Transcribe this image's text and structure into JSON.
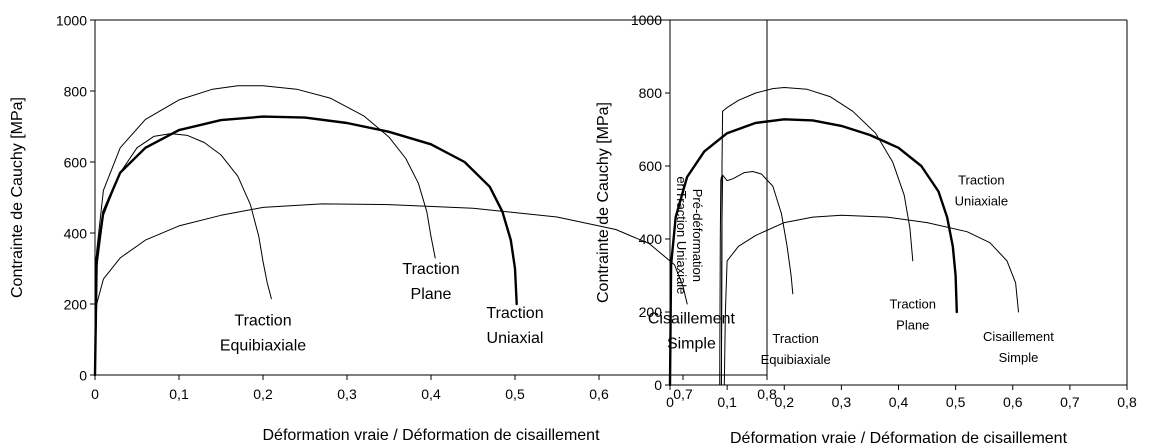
{
  "chart_data": [
    {
      "type": "line",
      "xlabel": "Déformation vraie / Déformation de cisaillement",
      "ylabel": "Contrainte de Cauchy [MPa]",
      "xlim": [
        0,
        0.8
      ],
      "ylim": [
        0,
        1000
      ],
      "x_ticks": [
        "0",
        "0,1",
        "0,2",
        "0,3",
        "0,4",
        "0,5",
        "0,6",
        "0,7",
        "0,8"
      ],
      "y_ticks": [
        "0",
        "200",
        "400",
        "600",
        "800",
        "1000"
      ],
      "grid": false,
      "series": [
        {
          "name": "Traction Equibiaxiale",
          "width": "thin",
          "points": [
            [
              0,
              0
            ],
            [
              0.002,
              300
            ],
            [
              0.01,
              450
            ],
            [
              0.03,
              570
            ],
            [
              0.05,
              640
            ],
            [
              0.07,
              672
            ],
            [
              0.09,
              680
            ],
            [
              0.11,
              675
            ],
            [
              0.13,
              655
            ],
            [
              0.15,
              620
            ],
            [
              0.17,
              560
            ],
            [
              0.185,
              480
            ],
            [
              0.195,
              390
            ],
            [
              0.2,
              320
            ],
            [
              0.205,
              260
            ],
            [
              0.21,
              215
            ]
          ]
        },
        {
          "name": "Traction Plane",
          "width": "thin",
          "points": [
            [
              0,
              0
            ],
            [
              0.002,
              350
            ],
            [
              0.01,
              520
            ],
            [
              0.03,
              640
            ],
            [
              0.06,
              720
            ],
            [
              0.1,
              775
            ],
            [
              0.14,
              805
            ],
            [
              0.17,
              815
            ],
            [
              0.2,
              815
            ],
            [
              0.24,
              805
            ],
            [
              0.28,
              780
            ],
            [
              0.32,
              730
            ],
            [
              0.35,
              670
            ],
            [
              0.37,
              610
            ],
            [
              0.385,
              540
            ],
            [
              0.395,
              460
            ],
            [
              0.4,
              390
            ],
            [
              0.405,
              330
            ]
          ]
        },
        {
          "name": "Traction Uniaxial",
          "width": "thick",
          "points": [
            [
              0,
              0
            ],
            [
              0.002,
              330
            ],
            [
              0.01,
              460
            ],
            [
              0.03,
              570
            ],
            [
              0.06,
              640
            ],
            [
              0.1,
              690
            ],
            [
              0.15,
              718
            ],
            [
              0.2,
              728
            ],
            [
              0.25,
              725
            ],
            [
              0.3,
              710
            ],
            [
              0.35,
              685
            ],
            [
              0.4,
              650
            ],
            [
              0.44,
              600
            ],
            [
              0.47,
              530
            ],
            [
              0.485,
              460
            ],
            [
              0.495,
              380
            ],
            [
              0.5,
              300
            ],
            [
              0.502,
              200
            ]
          ]
        },
        {
          "name": "Cisaillement Simple",
          "width": "thin",
          "points": [
            [
              0,
              0
            ],
            [
              0.002,
              200
            ],
            [
              0.01,
              270
            ],
            [
              0.03,
              330
            ],
            [
              0.06,
              380
            ],
            [
              0.1,
              420
            ],
            [
              0.15,
              450
            ],
            [
              0.2,
              472
            ],
            [
              0.27,
              482
            ],
            [
              0.35,
              480
            ],
            [
              0.45,
              470
            ],
            [
              0.55,
              445
            ],
            [
              0.62,
              410
            ],
            [
              0.66,
              370
            ],
            [
              0.69,
              310
            ],
            [
              0.7,
              250
            ],
            [
              0.705,
              200
            ]
          ]
        }
      ],
      "labels": [
        {
          "lines": [
            "Traction",
            "Equibiaxiale"
          ],
          "x": 0.2,
          "y": 140,
          "ls": 25
        },
        {
          "lines": [
            "Traction",
            "Plane"
          ],
          "x": 0.4,
          "y": 285,
          "ls": 25
        },
        {
          "lines": [
            "Traction",
            "Uniaxial"
          ],
          "x": 0.5,
          "y": 160,
          "ls": 25
        },
        {
          "lines": [
            "Cisaillement",
            "Simple"
          ],
          "x": 0.71,
          "y": 145,
          "ls": 25
        }
      ]
    },
    {
      "type": "line",
      "xlabel": "Déformation vraie / Déformation de cisaillement",
      "ylabel": "Contrainte de Cauchy [MPa]",
      "xlim": [
        0,
        0.8
      ],
      "ylim": [
        0,
        1000
      ],
      "x_ticks": [
        "0",
        "0,1",
        "0,2",
        "0,3",
        "0,4",
        "0,5",
        "0,6",
        "0,7",
        "0,8"
      ],
      "y_ticks": [
        "0",
        "200",
        "400",
        "600",
        "800",
        "1000"
      ],
      "grid": false,
      "series": [
        {
          "name": "Traction Uniaxiale",
          "width": "thick",
          "points": [
            [
              0,
              0
            ],
            [
              0.002,
              330
            ],
            [
              0.01,
              460
            ],
            [
              0.03,
              570
            ],
            [
              0.06,
              640
            ],
            [
              0.1,
              690
            ],
            [
              0.15,
              718
            ],
            [
              0.2,
              728
            ],
            [
              0.25,
              725
            ],
            [
              0.3,
              710
            ],
            [
              0.35,
              685
            ],
            [
              0.4,
              650
            ],
            [
              0.44,
              600
            ],
            [
              0.47,
              530
            ],
            [
              0.485,
              460
            ],
            [
              0.495,
              380
            ],
            [
              0.5,
              300
            ],
            [
              0.502,
              200
            ]
          ]
        },
        {
          "name": "Pré-déformation en Traction Uniaxiale",
          "width": "thin",
          "points": [
            [
              0.087,
              0
            ],
            [
              0.088,
              400
            ],
            [
              0.089,
              560
            ],
            [
              0.09,
              570
            ]
          ]
        },
        {
          "name": "Traction Plane",
          "width": "thin",
          "points": [
            [
              0.09,
              0
            ],
            [
              0.091,
              600
            ],
            [
              0.092,
              750
            ],
            [
              0.1,
              760
            ],
            [
              0.12,
              780
            ],
            [
              0.15,
              800
            ],
            [
              0.18,
              812
            ],
            [
              0.2,
              815
            ],
            [
              0.24,
              810
            ],
            [
              0.28,
              790
            ],
            [
              0.32,
              750
            ],
            [
              0.36,
              690
            ],
            [
              0.39,
              610
            ],
            [
              0.41,
              520
            ],
            [
              0.42,
              430
            ],
            [
              0.425,
              340
            ]
          ]
        },
        {
          "name": "Traction Equibiaxiale",
          "width": "thin",
          "points": [
            [
              0.09,
              0
            ],
            [
              0.091,
              450
            ],
            [
              0.092,
              575
            ],
            [
              0.1,
              560
            ],
            [
              0.11,
              565
            ],
            [
              0.13,
              582
            ],
            [
              0.145,
              585
            ],
            [
              0.16,
              578
            ],
            [
              0.18,
              545
            ],
            [
              0.195,
              470
            ],
            [
              0.205,
              380
            ],
            [
              0.212,
              300
            ],
            [
              0.215,
              250
            ]
          ]
        },
        {
          "name": "Cisaillement Simple",
          "width": "thin",
          "points": [
            [
              0.095,
              0
            ],
            [
              0.097,
              200
            ],
            [
              0.1,
              340
            ],
            [
              0.12,
              380
            ],
            [
              0.15,
              410
            ],
            [
              0.2,
              445
            ],
            [
              0.25,
              460
            ],
            [
              0.3,
              465
            ],
            [
              0.38,
              460
            ],
            [
              0.45,
              445
            ],
            [
              0.52,
              420
            ],
            [
              0.56,
              390
            ],
            [
              0.59,
              340
            ],
            [
              0.605,
              280
            ],
            [
              0.61,
              200
            ]
          ]
        }
      ],
      "labels": [
        {
          "lines": [
            "Traction",
            "Uniaxiale"
          ],
          "x": 0.545,
          "y": 550,
          "ls": 21
        },
        {
          "lines": [
            "Pré-déformation",
            "enTraction Uniaxiale"
          ],
          "x": 0.04,
          "y": 410,
          "ls": 16,
          "rotate": true
        },
        {
          "lines": [
            "Traction",
            "Equibiaxiale"
          ],
          "x": 0.22,
          "y": 115,
          "ls": 21
        },
        {
          "lines": [
            "Traction",
            "Plane"
          ],
          "x": 0.425,
          "y": 210,
          "ls": 21
        },
        {
          "lines": [
            "Cisaillement",
            "Simple"
          ],
          "x": 0.61,
          "y": 120,
          "ls": 21
        }
      ]
    }
  ]
}
